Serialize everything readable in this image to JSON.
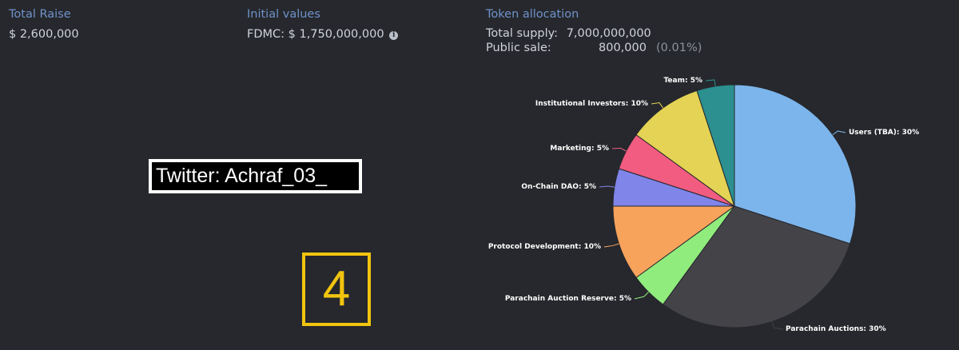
{
  "total_raise": {
    "heading": "Total Raise",
    "value": "$ 2,600,000"
  },
  "initial_values": {
    "heading": "Initial values",
    "fdmc": "FDMC: $ 1,750,000,000",
    "info_icon": "info-icon"
  },
  "token_allocation": {
    "heading": "Token allocation",
    "total_supply_label": "Total supply:",
    "total_supply_value": "7,000,000,000",
    "public_sale_label": "Public sale:",
    "public_sale_value": "800,000",
    "public_sale_pct": "(0.01%)"
  },
  "watermark": {
    "twitter": "Twitter: Achraf_03_",
    "number": "4"
  },
  "chart_data": {
    "type": "pie",
    "slices": [
      {
        "label": "Users (TBA): 30%",
        "value": 30,
        "color": "#7cb5ec"
      },
      {
        "label": "Parachain Auctions: 30%",
        "value": 30,
        "color": "#434348"
      },
      {
        "label": "Parachain Auction Reserve: 5%",
        "value": 5,
        "color": "#90ed7d"
      },
      {
        "label": "Protocol Development: 10%",
        "value": 10,
        "color": "#f7a35c"
      },
      {
        "label": "On-Chain DAO: 5%",
        "value": 5,
        "color": "#8085e9"
      },
      {
        "label": "Marketing: 5%",
        "value": 5,
        "color": "#f15c80"
      },
      {
        "label": "Institutional Investors: 10%",
        "value": 10,
        "color": "#e4d354"
      },
      {
        "label": "Team: 5%",
        "value": 5,
        "color": "#2b908f"
      }
    ]
  }
}
